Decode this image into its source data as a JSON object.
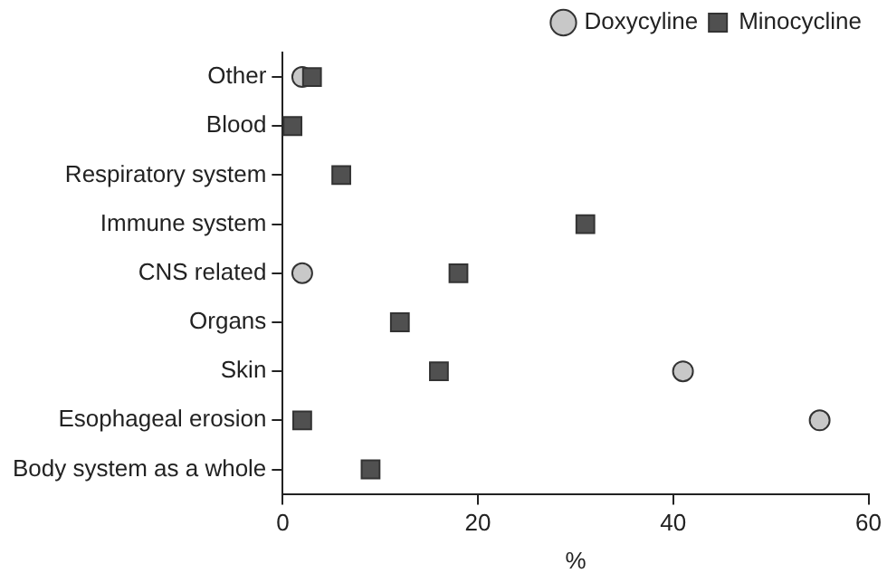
{
  "chart_data": {
    "type": "scatter",
    "orientation": "horizontal",
    "xlabel": "%",
    "categories": [
      "Other",
      "Blood",
      "Respiratory system",
      "Immune system",
      "CNS related",
      "Organs",
      "Skin",
      "Esophageal erosion",
      "Body system as a whole"
    ],
    "series": [
      {
        "name": "Doxycyline",
        "color": "#c8c8c8",
        "marker": "circle",
        "values": [
          2,
          null,
          null,
          null,
          2,
          null,
          41,
          55,
          null
        ]
      },
      {
        "name": "Minocycline",
        "color": "#505050",
        "marker": "square",
        "values": [
          3,
          1,
          6,
          31,
          18,
          12,
          16,
          2,
          9
        ]
      }
    ],
    "xlim": [
      0,
      60
    ],
    "xticks": [
      0,
      20,
      40,
      60
    ],
    "grid": false,
    "legend": "top right"
  }
}
